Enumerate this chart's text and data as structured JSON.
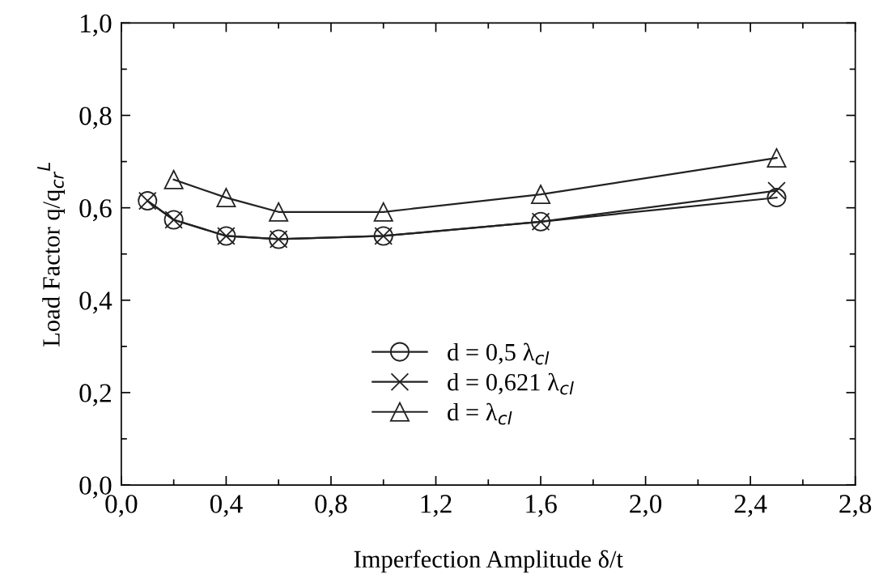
{
  "chart_data": {
    "type": "line",
    "xlabel": "Imperfection Amplitude δ/t",
    "ylabel": "Load Factor q/q$_{cr}$$^{L}$",
    "xlim": [
      0,
      2.8
    ],
    "ylim": [
      0,
      1
    ],
    "xticks": [
      {
        "value": 0,
        "label": "0,0"
      },
      {
        "value": 0.4,
        "label": "0,4"
      },
      {
        "value": 0.8,
        "label": "0,8"
      },
      {
        "value": 1.2,
        "label": "1,2"
      },
      {
        "value": 1.6,
        "label": "1,6"
      },
      {
        "value": 2.0,
        "label": "2,0"
      },
      {
        "value": 2.4,
        "label": "2,4"
      },
      {
        "value": 2.8,
        "label": "2,8"
      }
    ],
    "yticks": [
      {
        "value": 0,
        "label": "0,0"
      },
      {
        "value": 0.2,
        "label": "0,2"
      },
      {
        "value": 0.4,
        "label": "0,4"
      },
      {
        "value": 0.6,
        "label": "0,6"
      },
      {
        "value": 0.8,
        "label": "0,8"
      },
      {
        "value": 1.0,
        "label": "1,0"
      }
    ],
    "grid": false,
    "legend": "bottom",
    "line_style": "solid",
    "series": [
      {
        "name": "d = 0,5 λ$_{cl}$",
        "color": "#222222",
        "marker": "circle",
        "x": [
          0.1,
          0.2,
          0.4,
          0.6,
          1.0,
          1.6,
          2.5
        ],
        "values": [
          0.615,
          0.574,
          0.539,
          0.532,
          0.539,
          0.57,
          0.622
        ]
      },
      {
        "name": "d = 0,621 λ$_{cl}$",
        "color": "#222222",
        "marker": "cross",
        "x": [
          0.1,
          0.2,
          0.4,
          0.6,
          1.0,
          1.6,
          2.5
        ],
        "values": [
          0.615,
          0.574,
          0.539,
          0.532,
          0.539,
          0.57,
          0.637
        ]
      },
      {
        "name": "d = λ$_{cl}$",
        "color": "#222222",
        "marker": "triangle",
        "x": [
          0.2,
          0.4,
          0.6,
          1.0,
          1.6,
          2.5
        ],
        "values": [
          0.661,
          0.622,
          0.591,
          0.591,
          0.629,
          0.708
        ]
      }
    ]
  }
}
